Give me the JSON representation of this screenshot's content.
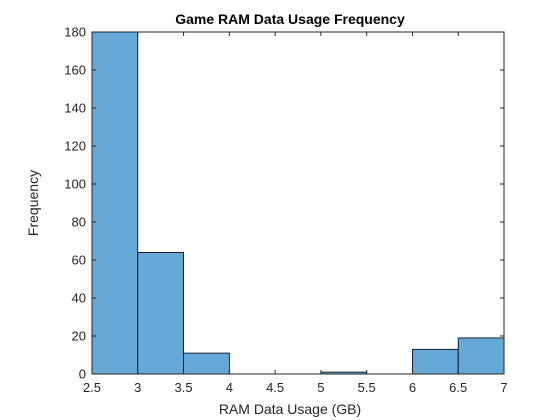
{
  "chart_data": {
    "type": "bar",
    "title": "Game RAM Data Usage Frequency",
    "xlabel": "RAM Data Usage (GB)",
    "ylabel": "Frequency",
    "xlim": [
      2.5,
      7.0
    ],
    "ylim": [
      0,
      180
    ],
    "x_ticks": [
      "2.5",
      "3",
      "3.5",
      "4",
      "4.5",
      "5",
      "5.5",
      "6",
      "6.5",
      "7"
    ],
    "y_ticks": [
      "0",
      "20",
      "40",
      "60",
      "80",
      "100",
      "120",
      "140",
      "160",
      "180"
    ],
    "bin_edges": [
      2.5,
      3.0,
      3.5,
      4.0,
      4.5,
      5.0,
      5.5,
      6.0,
      6.5,
      7.0
    ],
    "values": [
      180,
      64,
      11,
      0,
      0,
      1,
      0,
      13,
      19
    ],
    "grid": false,
    "bar_color": "#64a9d8",
    "edge_color": "#000000"
  }
}
